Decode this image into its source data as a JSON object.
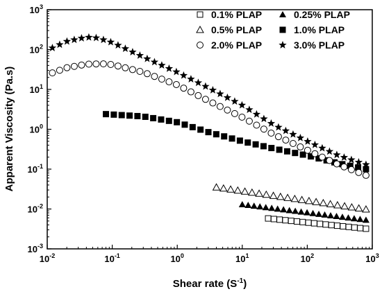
{
  "chart_data": {
    "type": "scatter",
    "xscale": "log",
    "yscale": "log",
    "xlim": [
      0.01,
      1000
    ],
    "ylim": [
      0.001,
      1000
    ],
    "xlabel_main": "Shear rate (S",
    "xlabel_sup": "-1",
    "xlabel_close": ")",
    "ylabel": "Apparent Viscosity (Pa.s)",
    "x_ticks": [
      {
        "base": "10",
        "exp": "-2"
      },
      {
        "base": "10",
        "exp": "-1"
      },
      {
        "base": "10",
        "exp": "0"
      },
      {
        "base": "10",
        "exp": "1"
      },
      {
        "base": "10",
        "exp": "2"
      },
      {
        "base": "10",
        "exp": "3"
      }
    ],
    "y_ticks": [
      {
        "base": "10",
        "exp": "-3"
      },
      {
        "base": "10",
        "exp": "-2"
      },
      {
        "base": "10",
        "exp": "-1"
      },
      {
        "base": "10",
        "exp": "0"
      },
      {
        "base": "10",
        "exp": "1"
      },
      {
        "base": "10",
        "exp": "2"
      },
      {
        "base": "10",
        "exp": "3"
      }
    ],
    "grid": false,
    "legend_position": "top-right",
    "series": [
      {
        "name": "0.1% PLAP",
        "marker": "square-open",
        "x_range": [
          25,
          800
        ],
        "points": 18,
        "x": [
          25,
          800
        ],
        "y": [
          0.0058,
          0.0032
        ]
      },
      {
        "name": "0.25% PLAP",
        "marker": "triangle-filled",
        "points": 22,
        "x": [
          10,
          800
        ],
        "y": [
          0.013,
          0.0053
        ]
      },
      {
        "name": "0.5% PLAP",
        "marker": "triangle-open",
        "points": 22,
        "x": [
          4,
          800
        ],
        "y": [
          0.035,
          0.0098
        ]
      },
      {
        "name": "1.0% PLAP",
        "marker": "square-filled",
        "points": 34,
        "x": [
          0.08,
          0.3,
          1,
          3,
          10,
          30,
          100,
          300,
          800
        ],
        "y": [
          2.4,
          2.1,
          1.5,
          0.85,
          0.5,
          0.33,
          0.22,
          0.14,
          0.1
        ]
      },
      {
        "name": "2.0% PLAP",
        "marker": "circle-open",
        "points": 44,
        "x": [
          0.012,
          0.02,
          0.04,
          0.07,
          0.1,
          0.3,
          1,
          3,
          10,
          30,
          100,
          300,
          800
        ],
        "y": [
          26,
          35,
          43,
          44,
          42,
          27,
          13,
          5.2,
          2,
          0.75,
          0.3,
          0.13,
          0.07
        ]
      },
      {
        "name": "3.0% PLAP",
        "marker": "star-filled",
        "points": 44,
        "x": [
          0.012,
          0.02,
          0.04,
          0.06,
          0.1,
          0.3,
          1,
          3,
          10,
          30,
          100,
          300,
          800
        ],
        "y": [
          110,
          160,
          205,
          195,
          150,
          65,
          27,
          11,
          4,
          1.3,
          0.5,
          0.22,
          0.13
        ]
      }
    ]
  }
}
